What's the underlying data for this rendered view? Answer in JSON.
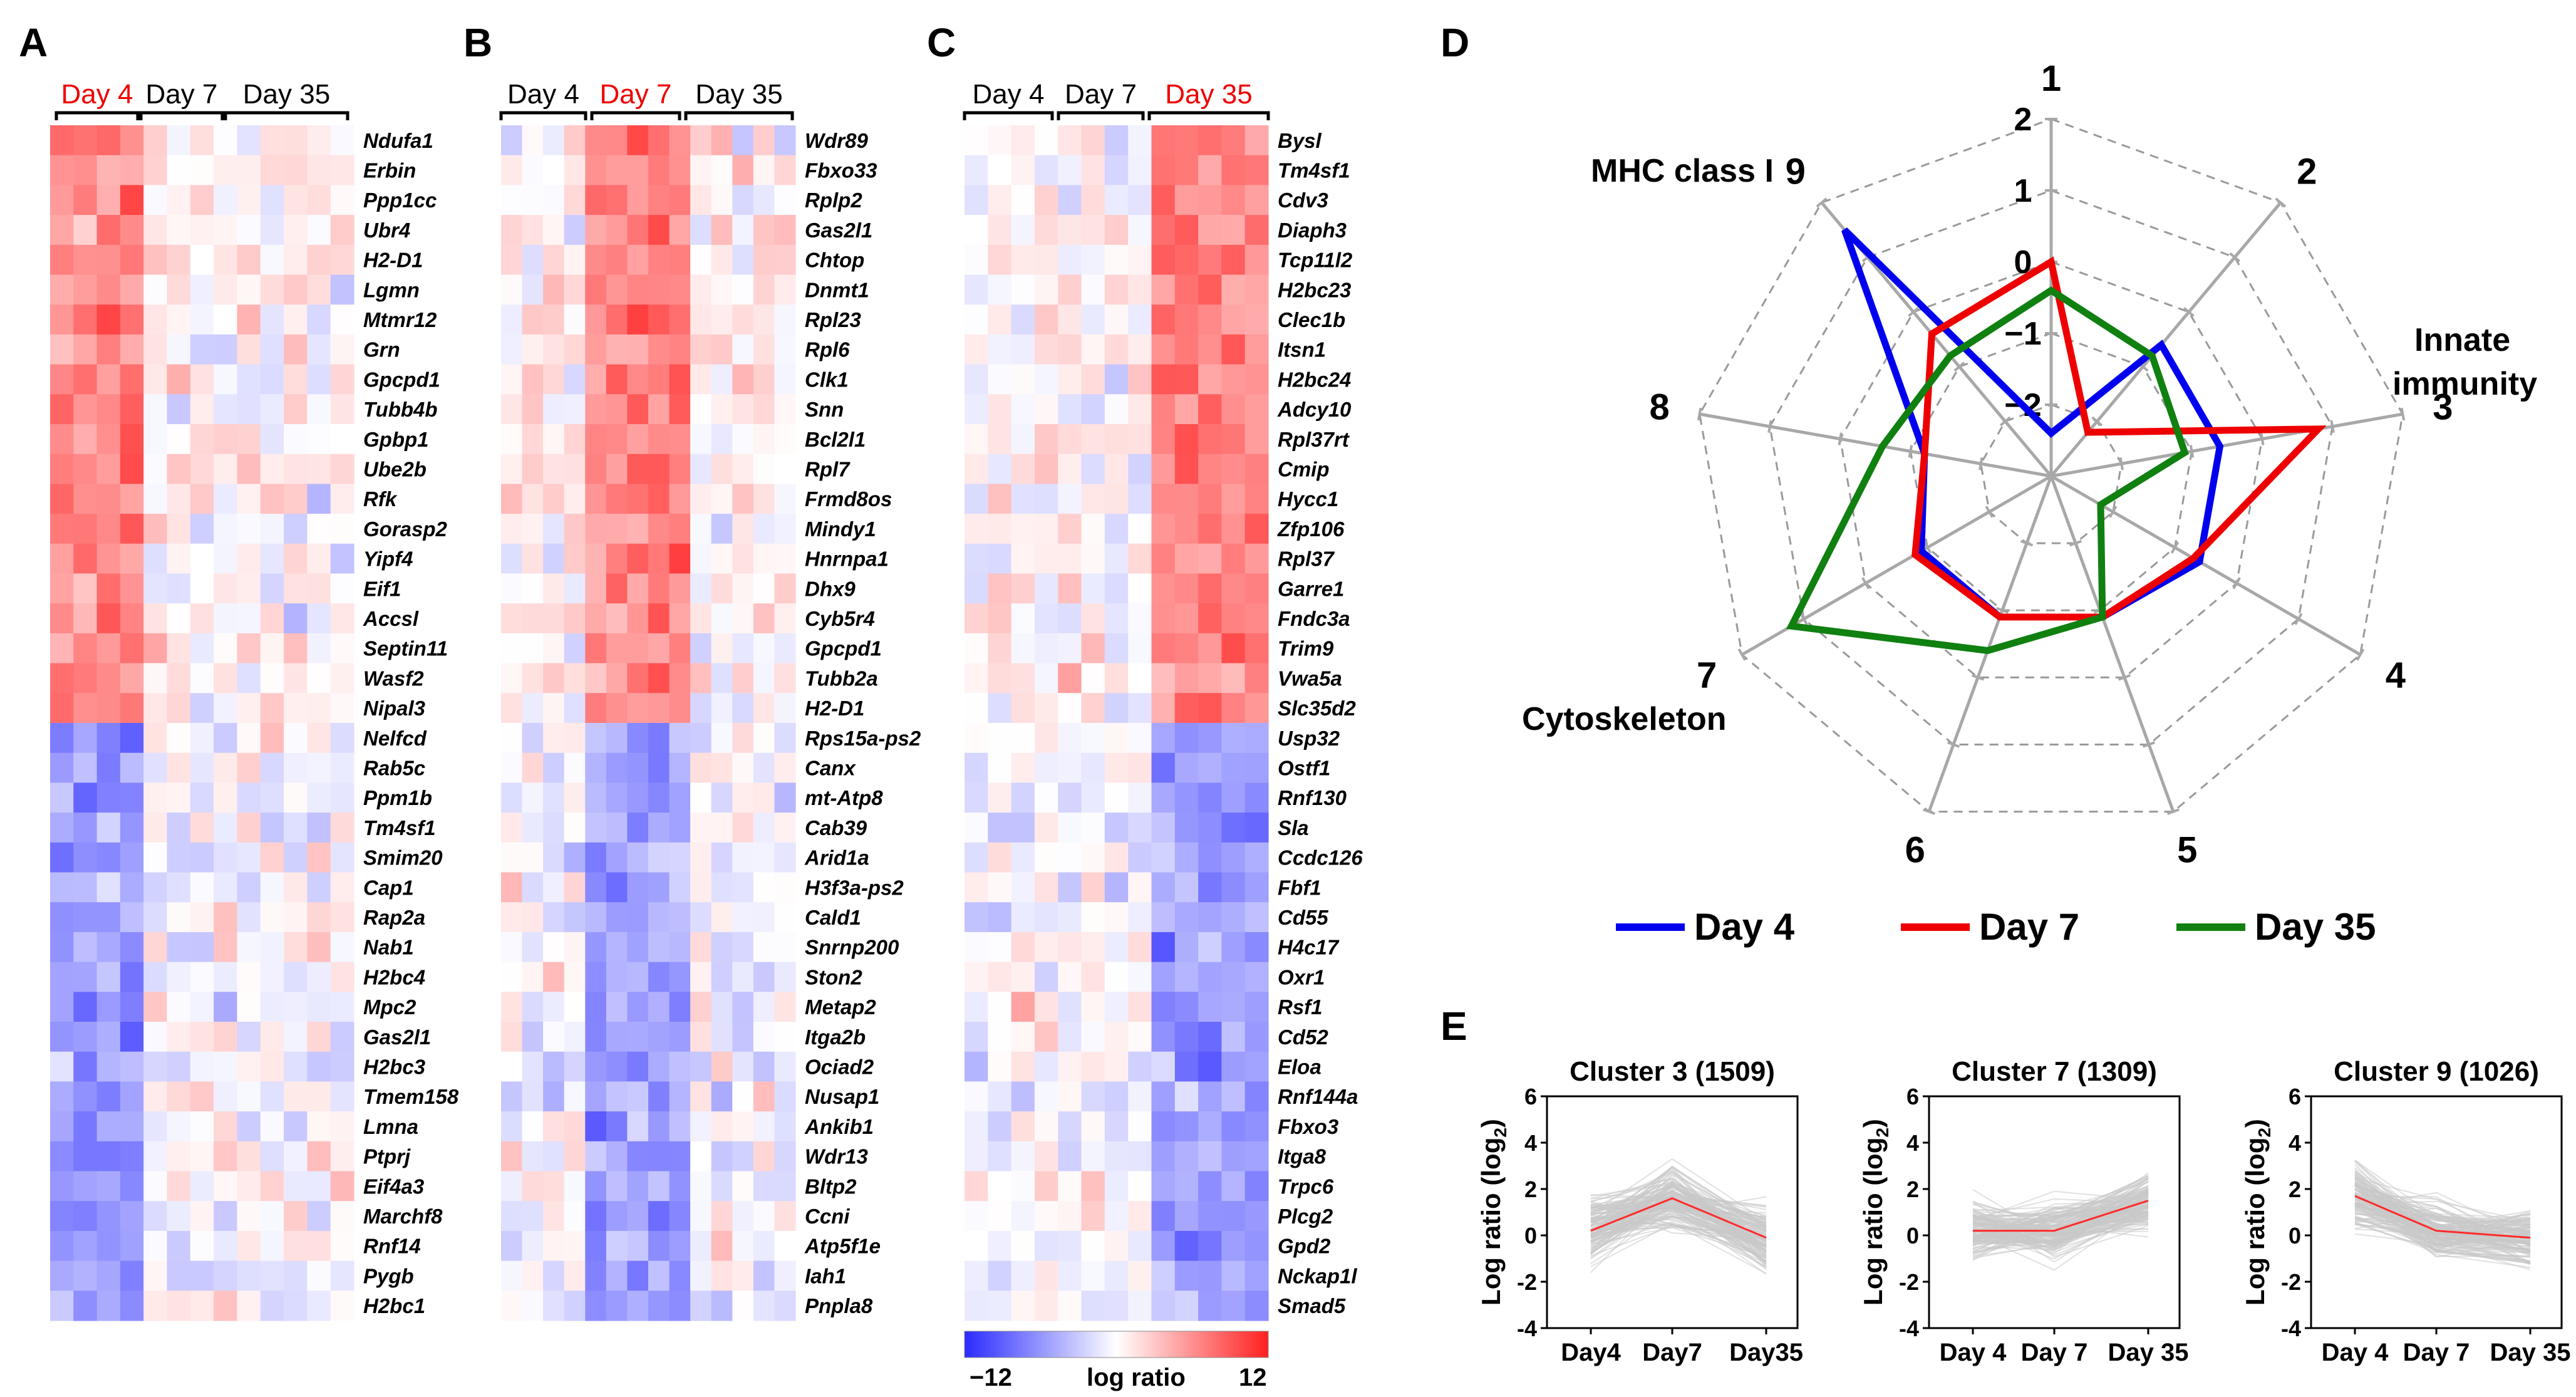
{
  "panels": {
    "A": {
      "label": "A",
      "days": [
        "Day 4",
        "Day 7",
        "Day 35"
      ],
      "highlight_index": 0,
      "genes": [
        "Ndufa1",
        "Erbin",
        "Ppp1cc",
        "Ubr4",
        "H2-D1",
        "Lgmn",
        "Mtmr12",
        "Grn",
        "Gpcpd1",
        "Tubb4b",
        "Gpbp1",
        "Ube2b",
        "Rfk",
        "Gorasp2",
        "Yipf4",
        "Eif1",
        "Accsl",
        "Septin11",
        "Wasf2",
        "Nipal3",
        "Nelfcd",
        "Rab5c",
        "Ppm1b",
        "Tm4sf1",
        "Smim20",
        "Cap1",
        "Rap2a",
        "Nab1",
        "H2bc4",
        "Mpc2",
        "Gas2l1",
        "H2bc3",
        "Tmem158",
        "Lmna",
        "Ptprj",
        "Eif4a3",
        "Marchf8",
        "Rnf14",
        "Pygb",
        "H2bc1"
      ]
    },
    "B": {
      "label": "B",
      "days": [
        "Day 4",
        "Day 7",
        "Day 35"
      ],
      "highlight_index": 1,
      "genes": [
        "Wdr89",
        "Fbxo33",
        "Rplp2",
        "Gas2l1",
        "Chtop",
        "Dnmt1",
        "Rpl23",
        "Rpl6",
        "Clk1",
        "Snn",
        "Bcl2l1",
        "Rpl7",
        "Frmd8os",
        "Mindy1",
        "Hnrnpa1",
        "Dhx9",
        "Cyb5r4",
        "Gpcpd1",
        "Tubb2a",
        "H2-D1",
        "Rps15a-ps2",
        "Canx",
        "mt-Atp8",
        "Cab39",
        "Arid1a",
        "H3f3a-ps2",
        "Cald1",
        "Snrnp200",
        "Ston2",
        "Metap2",
        "Itga2b",
        "Ociad2",
        "Nusap1",
        "Ankib1",
        "Wdr13",
        "Bltp2",
        "Ccni",
        "Atp5f1e",
        "Iah1",
        "Pnpla8"
      ]
    },
    "C": {
      "label": "C",
      "days": [
        "Day 4",
        "Day 7",
        "Day 35"
      ],
      "highlight_index": 2,
      "genes": [
        "Bysl",
        "Tm4sf1",
        "Cdv3",
        "Diaph3",
        "Tcp11l2",
        "H2bc23",
        "Clec1b",
        "Itsn1",
        "H2bc24",
        "Adcy10",
        "Rpl37rt",
        "Cmip",
        "Hycc1",
        "Zfp106",
        "Rpl37",
        "Garre1",
        "Fndc3a",
        "Trim9",
        "Vwa5a",
        "Slc35d2",
        "Usp32",
        "Ostf1",
        "Rnf130",
        "Sla",
        "Ccdc126",
        "Fbf1",
        "Cd55",
        "H4c17",
        "Oxr1",
        "Rsf1",
        "Cd52",
        "Eloa",
        "Rnf144a",
        "Fbxo3",
        "Itga8",
        "Trpc6",
        "Plcg2",
        "Gpd2",
        "Nckap1l",
        "Smad5"
      ]
    },
    "colorbar": {
      "min_label": "−12",
      "max_label": "12",
      "title": "log ratio",
      "min": -12,
      "max": 12
    }
  },
  "chart_data": [
    {
      "panel": "A",
      "type": "heatmap",
      "columns": [
        "Day 4",
        "Day 4",
        "Day 4",
        "Day 4",
        "Day 7",
        "Day 7",
        "Day 7",
        "Day 7",
        "Day 35",
        "Day 35",
        "Day 35",
        "Day 35",
        "Day 35"
      ],
      "pattern": "first 20 genes up (red) at Day 4; last 20 genes down (blue) at Day 4; weak mixed values at Day 7 and Day 35"
    },
    {
      "panel": "B",
      "type": "heatmap",
      "columns": [
        "Day 4",
        "Day 4",
        "Day 4",
        "Day 4",
        "Day 7",
        "Day 7",
        "Day 7",
        "Day 7",
        "Day 7",
        "Day 35",
        "Day 35",
        "Day 35",
        "Day 35",
        "Day 35"
      ],
      "pattern": "first 20 genes up (red) at Day 7; last 20 genes down (blue) at Day 7"
    },
    {
      "panel": "C",
      "type": "heatmap",
      "columns": [
        "Day 4",
        "Day 4",
        "Day 4",
        "Day 4",
        "Day 7",
        "Day 7",
        "Day 7",
        "Day 7",
        "Day 35",
        "Day 35",
        "Day 35",
        "Day 35",
        "Day 35"
      ],
      "pattern": "first 20 genes up (red) at Day 35; last 20 genes down (blue) at Day 35"
    },
    {
      "panel": "D",
      "type": "radar",
      "label": "D",
      "axes": [
        "1",
        "2",
        "3",
        "4",
        "5",
        "6",
        "7",
        "8",
        "9"
      ],
      "rlim": [
        -3,
        2
      ],
      "ticks": [
        2,
        1,
        0,
        -1,
        -2
      ],
      "tick_labels": [
        "2",
        "1",
        "0",
        "−1",
        "−2"
      ],
      "annotations": {
        "mhc": "MHC class I",
        "innate_1": "Innate",
        "innate_2": "immunity",
        "cyto": "Cytoskeleton"
      },
      "series": [
        {
          "name": "Day 4",
          "color": "#0000ee",
          "values": [
            -2.4,
            -0.6,
            -0.6,
            -0.6,
            -0.9,
            -0.9,
            -0.9,
            -1.2,
            1.5
          ]
        },
        {
          "name": "Day 7",
          "color": "#ee0000",
          "values": [
            0.0,
            -2.2,
            0.8,
            -0.7,
            -0.9,
            -0.9,
            -0.8,
            -1.2,
            -0.4
          ]
        },
        {
          "name": "Day 35",
          "color": "#108010",
          "values": [
            -0.4,
            -0.8,
            -1.1,
            -2.2,
            -0.9,
            -0.4,
            1.2,
            -0.6,
            -0.8
          ]
        }
      ],
      "legend": [
        "Day 4",
        "Day 7",
        "Day 35"
      ]
    },
    {
      "panel": "E",
      "type": "line",
      "label": "E",
      "ylabel": "Log ratio (log",
      "ylabel_sub": "2",
      "ylabel_close": ")",
      "ylim": [
        -4,
        6
      ],
      "yticks": [
        "6",
        "4",
        "2",
        "0",
        "-2",
        "-4"
      ],
      "subplots": [
        {
          "title": "Cluster 3 (1509)",
          "x": [
            "Day4",
            "Day7",
            "Day35"
          ],
          "mean": [
            0.2,
            1.6,
            -0.1
          ],
          "spread": [
            1.2,
            1.1,
            1.0
          ]
        },
        {
          "title": "Cluster 7 (1309)",
          "x": [
            "Day 4",
            "Day 7",
            "Day 35"
          ],
          "mean": [
            0.2,
            0.2,
            1.5
          ],
          "spread": [
            1.0,
            1.0,
            1.0
          ]
        },
        {
          "title": "Cluster 9 (1026)",
          "x": [
            "Day 4",
            "Day 7",
            "Day 35"
          ],
          "mean": [
            1.7,
            0.2,
            -0.1
          ],
          "spread": [
            1.2,
            1.0,
            1.0
          ]
        }
      ],
      "mean_color": "#ff2a2a",
      "trace_color": "#c8c8c8"
    }
  ]
}
